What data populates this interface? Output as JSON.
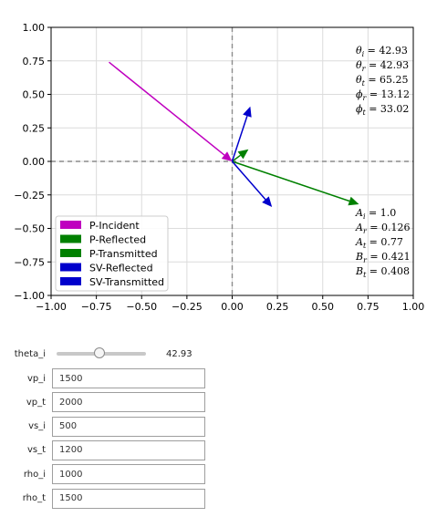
{
  "chart_data": {
    "type": "vector",
    "xlim": [
      -1.0,
      1.0
    ],
    "ylim": [
      -1.0,
      1.0
    ],
    "grid": true,
    "xticks": [
      "−1.00",
      "−0.75",
      "−0.50",
      "−0.25",
      "0.00",
      "0.25",
      "0.50",
      "0.75",
      "1.00"
    ],
    "yticks": [
      "1.00",
      "0.75",
      "0.50",
      "0.25",
      "0.00",
      "−0.25",
      "−0.50",
      "−0.75",
      "−1.00"
    ],
    "xtick_values": [
      -1.0,
      -0.75,
      -0.5,
      -0.25,
      0.0,
      0.25,
      0.5,
      0.75,
      1.0
    ],
    "ytick_values": [
      1.0,
      0.75,
      0.5,
      0.25,
      0.0,
      -0.25,
      -0.5,
      -0.75,
      -1.0
    ],
    "series": [
      {
        "name": "P-Incident",
        "color": "#bf00bf",
        "x0": -0.68,
        "y0": 0.74,
        "x1": 0.0,
        "y1": 0.0
      },
      {
        "name": "P-Reflected",
        "color": "#008000",
        "x0": 0.0,
        "y0": 0.0,
        "x1": 0.09,
        "y1": 0.09
      },
      {
        "name": "P-Transmitted",
        "color": "#008000",
        "x0": 0.0,
        "y0": 0.0,
        "x1": 0.7,
        "y1": -0.32
      },
      {
        "name": "SV-Reflected",
        "color": "#0000cc",
        "x0": 0.0,
        "y0": 0.0,
        "x1": 0.1,
        "y1": 0.41
      },
      {
        "name": "SV-Transmitted",
        "color": "#0000cc",
        "x0": 0.0,
        "y0": 0.0,
        "x1": 0.22,
        "y1": -0.34
      }
    ],
    "legend_placement": "lower-left",
    "annotations_top": [
      {
        "sym": "θ",
        "sub": "i",
        "val": "42.93"
      },
      {
        "sym": "θ",
        "sub": "r",
        "val": "42.93"
      },
      {
        "sym": "θ",
        "sub": "t",
        "val": "65.25"
      },
      {
        "sym": "ϕ",
        "sub": "r",
        "val": "13.12"
      },
      {
        "sym": "ϕ",
        "sub": "t",
        "val": "33.02"
      }
    ],
    "annotations_bottom": [
      {
        "sym": "A",
        "sub": "i",
        "val": "1.0"
      },
      {
        "sym": "A",
        "sub": "r",
        "val": "0.126"
      },
      {
        "sym": "A",
        "sub": "t",
        "val": "0.77"
      },
      {
        "sym": "B",
        "sub": "r",
        "val": "0.421"
      },
      {
        "sym": "B",
        "sub": "t",
        "val": "0.408"
      }
    ]
  },
  "colors": {
    "grid": "#dcdcdc",
    "axis_dash": "#8c8c8c"
  },
  "controls": {
    "slider": {
      "label": "theta_i",
      "value": "42.93",
      "fraction": 0.48
    },
    "fields": [
      {
        "label": "vp_i",
        "value": "1500"
      },
      {
        "label": "vp_t",
        "value": "2000"
      },
      {
        "label": "vs_i",
        "value": "500"
      },
      {
        "label": "vs_t",
        "value": "1200"
      },
      {
        "label": "rho_i",
        "value": "1000"
      },
      {
        "label": "rho_t",
        "value": "1500"
      }
    ]
  }
}
